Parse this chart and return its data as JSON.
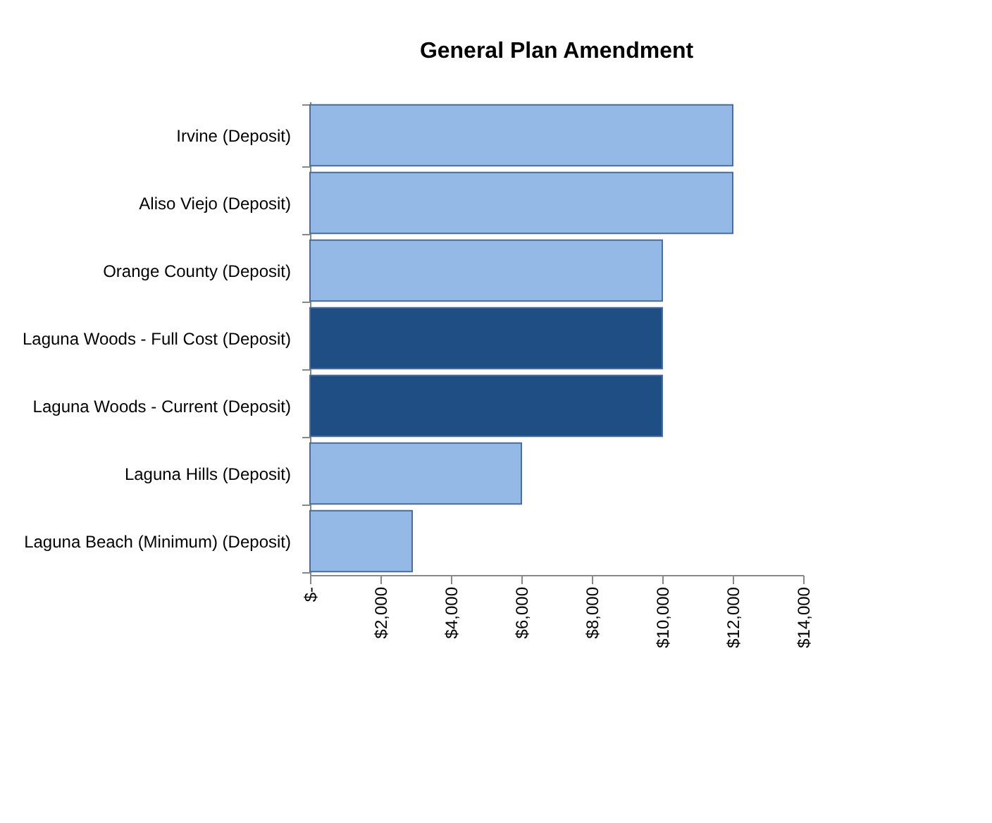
{
  "chart_data": {
    "type": "bar",
    "orientation": "horizontal",
    "title": "General Plan Amendment",
    "categories": [
      "Irvine (Deposit)",
      "Aliso Viejo (Deposit)",
      "Orange County (Deposit)",
      "Laguna Woods - Full Cost (Deposit)",
      "Laguna Woods - Current (Deposit)",
      "Laguna Hills (Deposit)",
      "Laguna Beach (Minimum) (Deposit)"
    ],
    "values": [
      12000,
      12000,
      10000,
      10000,
      10000,
      6000,
      2900
    ],
    "colors": [
      "#95b9e6",
      "#95b9e6",
      "#95b9e6",
      "#1f4e85",
      "#1f4e85",
      "#95b9e6",
      "#95b9e6"
    ],
    "xlim": [
      0,
      14000
    ],
    "xticks": [
      {
        "value": 0,
        "label": "$-"
      },
      {
        "value": 2000,
        "label": "$2,000"
      },
      {
        "value": 4000,
        "label": "$4,000"
      },
      {
        "value": 6000,
        "label": "$6,000"
      },
      {
        "value": 8000,
        "label": "$8,000"
      },
      {
        "value": 10000,
        "label": "$10,000"
      },
      {
        "value": 12000,
        "label": "$12,000"
      },
      {
        "value": 14000,
        "label": "$14,000"
      }
    ],
    "grid": false,
    "legend": false
  }
}
